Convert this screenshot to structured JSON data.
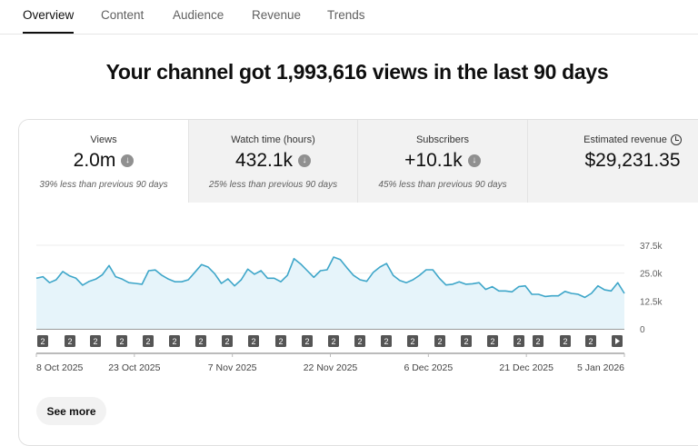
{
  "tabs": [
    {
      "label": "Overview",
      "active": true
    },
    {
      "label": "Content"
    },
    {
      "label": "Audience"
    },
    {
      "label": "Revenue"
    },
    {
      "label": "Trends"
    }
  ],
  "headline": "Your channel got 1,993,616 views in the last 90 days",
  "metrics": [
    {
      "label": "Views",
      "value": "2.0m",
      "trend": "down",
      "comparison": "39% less than previous 90 days",
      "selected": true
    },
    {
      "label": "Watch time (hours)",
      "value": "432.1k",
      "trend": "down",
      "comparison": "25% less than previous 90 days"
    },
    {
      "label": "Subscribers",
      "value": "+10.1k",
      "trend": "down",
      "comparison": "45% less than previous 90 days"
    },
    {
      "label": "Estimated revenue",
      "value": "$29,231.35",
      "icon": "clock-icon"
    }
  ],
  "chart_data": {
    "type": "area",
    "series": [
      {
        "values": [
          22.7,
          23.4,
          20.7,
          22,
          25.7,
          23.8,
          22.7,
          19.6,
          21.3,
          22.3,
          24.3,
          28.4,
          23.4,
          22.3,
          20.7,
          20.4,
          20,
          26.1,
          26.4,
          24,
          22.3,
          21.1,
          21.1,
          22,
          25.4,
          28.8,
          27.7,
          24.7,
          20.4,
          22.4,
          19.3,
          22,
          26.8,
          24.5,
          26.1,
          22.7,
          22.7,
          21.1,
          24,
          31.5,
          29.1,
          26.1,
          23.1,
          26.1,
          26.5,
          32.2,
          31.1,
          27.4,
          24,
          22,
          21.3,
          25.4,
          27.7,
          29.3,
          24,
          21.7,
          20.7,
          22,
          24,
          26.5,
          26.5,
          22.7,
          19.7,
          20,
          21.1,
          20,
          20.2,
          20.7,
          17.7,
          18.9,
          17,
          17,
          16.6,
          18.9,
          19.3,
          15.5,
          15.5,
          14.5,
          14.8,
          14.8,
          16.8,
          15.9,
          15.5,
          14.1,
          15.9,
          19.3,
          17.5,
          17,
          20.7,
          15.9
        ]
      }
    ],
    "y_unit": "thousands",
    "ylim": [
      0,
      37.5
    ],
    "yticks": [
      "37.5k",
      "25.0k",
      "12.5k",
      "0"
    ],
    "xticks": [
      "8 Oct 2025",
      "23 Oct 2025",
      "7 Nov 2025",
      "22 Nov 2025",
      "6 Dec 2025",
      "21 Dec 2025",
      "5 Jan 2026"
    ],
    "grid": true,
    "line_color": "#3ea6c9",
    "fill_color": "#e6f4fa",
    "markers": [
      "2",
      "2",
      "2",
      "2",
      "2",
      "2",
      "2",
      "2",
      "2",
      "2",
      "2",
      "2",
      "2",
      "2",
      "2",
      "2",
      "2",
      "2",
      "2",
      "2",
      "2",
      "2",
      "play"
    ]
  },
  "see_more": "See more"
}
